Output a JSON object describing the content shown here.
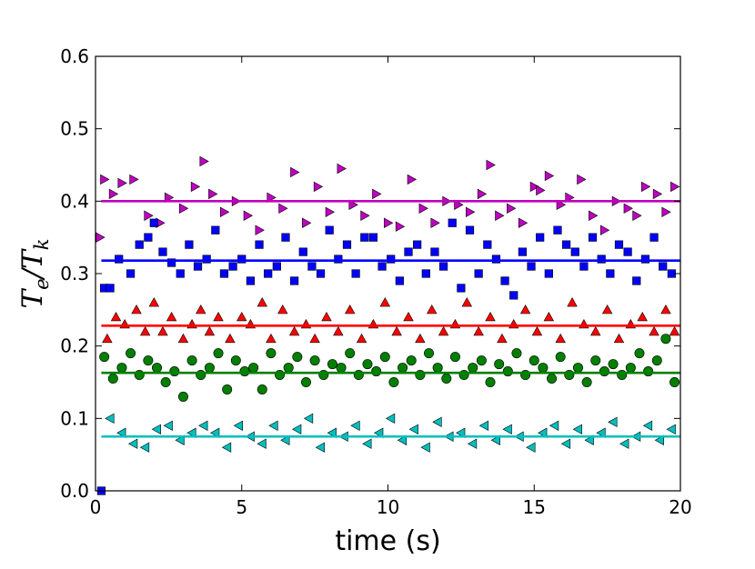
{
  "chart_data": {
    "type": "scatter",
    "title": "",
    "xlabel": "time (s)",
    "ylabel": {
      "main": "T",
      "sub1": "e",
      "sep": "/",
      "sub2": "k"
    },
    "xlim": [
      0,
      20
    ],
    "ylim": [
      0,
      0.6
    ],
    "xticks": [
      0,
      5,
      10,
      15,
      20
    ],
    "xtick_labels": [
      "0",
      "5",
      "10",
      "15",
      "20"
    ],
    "yticks": [
      0.0,
      0.1,
      0.2,
      0.3,
      0.4,
      0.5,
      0.6
    ],
    "ytick_labels": [
      "0.0",
      "0.1",
      "0.2",
      "0.3",
      "0.4",
      "0.5",
      "0.6"
    ],
    "grid": false,
    "legend": "none",
    "series": [
      {
        "marker": "triangle-right",
        "color": "#bf00bf",
        "line_value": 0.4,
        "x": [
          0.15,
          0.3,
          0.6,
          0.9,
          1.3,
          1.8,
          2.2,
          2.5,
          3.0,
          3.4,
          3.7,
          4.0,
          4.4,
          4.8,
          5.2,
          5.6,
          6.0,
          6.4,
          6.8,
          7.2,
          7.6,
          8.0,
          8.4,
          8.8,
          9.2,
          9.6,
          10.0,
          10.4,
          10.8,
          11.2,
          11.6,
          12.0,
          12.4,
          12.8,
          13.2,
          13.5,
          13.8,
          14.2,
          14.6,
          15.0,
          15.2,
          15.5,
          15.9,
          16.2,
          16.6,
          17.0,
          17.4,
          17.8,
          18.2,
          18.5,
          18.8,
          19.2,
          19.5,
          19.8
        ],
        "y": [
          0.35,
          0.43,
          0.41,
          0.425,
          0.43,
          0.38,
          0.37,
          0.405,
          0.39,
          0.42,
          0.455,
          0.41,
          0.385,
          0.4,
          0.38,
          0.36,
          0.405,
          0.39,
          0.44,
          0.37,
          0.42,
          0.385,
          0.445,
          0.395,
          0.38,
          0.41,
          0.37,
          0.365,
          0.43,
          0.39,
          0.37,
          0.4,
          0.395,
          0.385,
          0.41,
          0.45,
          0.38,
          0.39,
          0.37,
          0.42,
          0.415,
          0.435,
          0.395,
          0.405,
          0.43,
          0.38,
          0.36,
          0.4,
          0.39,
          0.38,
          0.42,
          0.41,
          0.385,
          0.42
        ]
      },
      {
        "marker": "square",
        "color": "#0000ff",
        "line_value": 0.318,
        "x": [
          0.3,
          0.5,
          0.8,
          1.2,
          1.5,
          1.8,
          2.0,
          2.3,
          2.6,
          2.9,
          3.2,
          3.5,
          3.8,
          4.1,
          4.4,
          4.7,
          5.0,
          5.3,
          5.6,
          5.9,
          6.2,
          6.5,
          6.8,
          7.1,
          7.4,
          7.7,
          8.0,
          8.3,
          8.6,
          8.9,
          9.2,
          9.5,
          9.8,
          10.1,
          10.4,
          10.7,
          11.0,
          11.3,
          11.6,
          11.9,
          12.2,
          12.5,
          12.8,
          13.1,
          13.4,
          13.7,
          14.0,
          14.3,
          14.6,
          14.9,
          15.2,
          15.5,
          15.8,
          16.1,
          16.4,
          16.7,
          17.0,
          17.3,
          17.6,
          17.9,
          18.2,
          18.5,
          18.8,
          19.1,
          19.4,
          19.7
        ],
        "y": [
          0.28,
          0.28,
          0.32,
          0.3,
          0.34,
          0.35,
          0.37,
          0.33,
          0.315,
          0.3,
          0.34,
          0.31,
          0.32,
          0.36,
          0.3,
          0.31,
          0.32,
          0.29,
          0.34,
          0.3,
          0.31,
          0.35,
          0.29,
          0.33,
          0.31,
          0.3,
          0.36,
          0.32,
          0.34,
          0.3,
          0.35,
          0.35,
          0.31,
          0.32,
          0.29,
          0.33,
          0.34,
          0.3,
          0.33,
          0.31,
          0.37,
          0.28,
          0.36,
          0.3,
          0.34,
          0.32,
          0.29,
          0.27,
          0.33,
          0.31,
          0.35,
          0.3,
          0.36,
          0.34,
          0.33,
          0.31,
          0.35,
          0.32,
          0.3,
          0.34,
          0.33,
          0.29,
          0.32,
          0.35,
          0.31,
          0.3
        ]
      },
      {
        "marker": "triangle-up",
        "color": "#ff0000",
        "line_value": 0.228,
        "x": [
          0.4,
          0.7,
          1.0,
          1.4,
          1.7,
          2.0,
          2.3,
          2.6,
          3.0,
          3.3,
          3.6,
          3.9,
          4.2,
          4.6,
          5.0,
          5.3,
          5.7,
          6.0,
          6.4,
          6.8,
          7.2,
          7.5,
          7.9,
          8.3,
          8.7,
          9.1,
          9.5,
          9.9,
          10.3,
          10.7,
          11.1,
          11.5,
          11.9,
          12.3,
          12.7,
          13.1,
          13.5,
          13.9,
          14.3,
          14.7,
          15.1,
          15.5,
          15.9,
          16.3,
          16.7,
          17.1,
          17.5,
          17.9,
          18.3,
          18.7,
          19.1,
          19.5,
          19.8
        ],
        "y": [
          0.21,
          0.24,
          0.23,
          0.25,
          0.22,
          0.26,
          0.22,
          0.24,
          0.21,
          0.23,
          0.25,
          0.22,
          0.24,
          0.21,
          0.24,
          0.23,
          0.26,
          0.21,
          0.25,
          0.22,
          0.23,
          0.21,
          0.24,
          0.22,
          0.25,
          0.21,
          0.23,
          0.26,
          0.22,
          0.24,
          0.21,
          0.25,
          0.22,
          0.23,
          0.26,
          0.22,
          0.24,
          0.21,
          0.23,
          0.25,
          0.22,
          0.24,
          0.21,
          0.26,
          0.23,
          0.22,
          0.25,
          0.21,
          0.23,
          0.24,
          0.22,
          0.25,
          0.22
        ]
      },
      {
        "marker": "circle",
        "color": "#007f00",
        "line_value": 0.163,
        "x": [
          0.3,
          0.6,
          0.9,
          1.2,
          1.5,
          1.8,
          2.1,
          2.4,
          2.7,
          3.0,
          3.3,
          3.6,
          3.9,
          4.2,
          4.5,
          4.8,
          5.1,
          5.4,
          5.7,
          6.0,
          6.3,
          6.6,
          6.9,
          7.2,
          7.5,
          7.8,
          8.1,
          8.4,
          8.7,
          9.0,
          9.3,
          9.6,
          9.9,
          10.2,
          10.5,
          10.8,
          11.1,
          11.4,
          11.7,
          12.0,
          12.3,
          12.6,
          12.9,
          13.2,
          13.5,
          13.8,
          14.1,
          14.4,
          14.7,
          15.0,
          15.3,
          15.6,
          15.9,
          16.2,
          16.5,
          16.8,
          17.1,
          17.4,
          17.7,
          18.0,
          18.3,
          18.6,
          18.9,
          19.2,
          19.5,
          19.8
        ],
        "y": [
          0.185,
          0.155,
          0.17,
          0.19,
          0.16,
          0.18,
          0.17,
          0.15,
          0.165,
          0.13,
          0.18,
          0.16,
          0.17,
          0.19,
          0.14,
          0.18,
          0.165,
          0.17,
          0.14,
          0.19,
          0.16,
          0.17,
          0.185,
          0.15,
          0.18,
          0.16,
          0.175,
          0.17,
          0.19,
          0.16,
          0.175,
          0.165,
          0.185,
          0.15,
          0.17,
          0.18,
          0.16,
          0.19,
          0.17,
          0.155,
          0.185,
          0.16,
          0.17,
          0.18,
          0.15,
          0.175,
          0.165,
          0.19,
          0.16,
          0.18,
          0.17,
          0.155,
          0.185,
          0.16,
          0.17,
          0.15,
          0.18,
          0.165,
          0.175,
          0.16,
          0.17,
          0.19,
          0.165,
          0.18,
          0.21,
          0.15
        ]
      },
      {
        "marker": "triangle-left",
        "color": "#00bfbf",
        "line_value": 0.075,
        "x": [
          0.5,
          0.9,
          1.3,
          1.7,
          2.1,
          2.5,
          2.9,
          3.3,
          3.7,
          4.1,
          4.5,
          4.9,
          5.3,
          5.7,
          6.1,
          6.5,
          6.9,
          7.3,
          7.7,
          8.1,
          8.5,
          8.9,
          9.3,
          9.7,
          10.1,
          10.5,
          10.9,
          11.3,
          11.7,
          12.1,
          12.5,
          12.9,
          13.3,
          13.7,
          14.1,
          14.5,
          14.9,
          15.3,
          15.7,
          16.1,
          16.5,
          16.9,
          17.3,
          17.7,
          18.1,
          18.5,
          18.9,
          19.3,
          19.7
        ],
        "y": [
          0.1,
          0.08,
          0.065,
          0.06,
          0.085,
          0.09,
          0.07,
          0.08,
          0.09,
          0.08,
          0.06,
          0.09,
          0.075,
          0.065,
          0.09,
          0.07,
          0.085,
          0.1,
          0.06,
          0.08,
          0.075,
          0.09,
          0.065,
          0.08,
          0.1,
          0.07,
          0.085,
          0.06,
          0.095,
          0.075,
          0.08,
          0.065,
          0.09,
          0.07,
          0.085,
          0.075,
          0.06,
          0.08,
          0.09,
          0.065,
          0.085,
          0.07,
          0.08,
          0.095,
          0.065,
          0.075,
          0.09,
          0.07,
          0.085
        ]
      }
    ]
  }
}
